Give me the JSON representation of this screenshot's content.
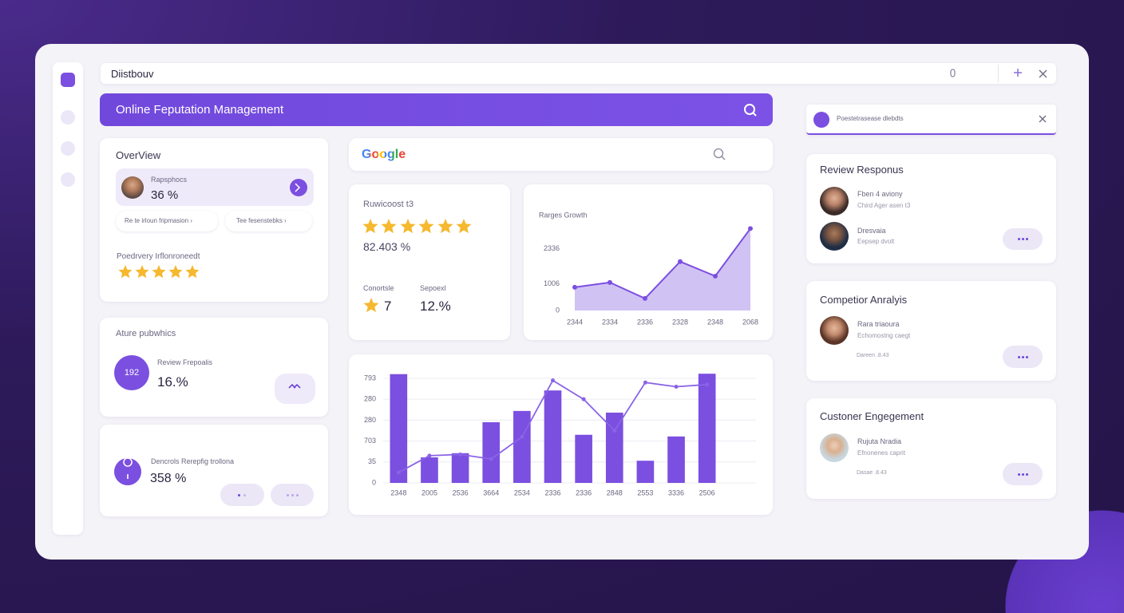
{
  "topbar": {
    "title": "Diistbouv"
  },
  "banner": {
    "title": "Online Feputation Management"
  },
  "overview": {
    "title": "OverView",
    "stat_label": "Rapsphocs",
    "stat_value": "36 %",
    "pills": [
      "Re te irloun fripmasion ›",
      "Tee fesenstebks ›"
    ],
    "rating_label": "Poedrvery Irflonroneedt"
  },
  "public_card": {
    "title": "Ature pubwhics",
    "badge": "192",
    "label": "Review Frepoalis",
    "value": "16.%"
  },
  "control_card": {
    "label": "Dencrols Rerepfig trollona",
    "value": "358 %"
  },
  "search": {
    "brand": "Google"
  },
  "rating_card": {
    "title": "Ruwicoost t3",
    "score": "82.403 %",
    "left_label": "Conortsle",
    "right_label": "Sepoexl",
    "left_value": "7",
    "right_value": "12.%"
  },
  "chart_data": [
    {
      "type": "area",
      "title": "Rarges Growth",
      "categories": [
        "2344",
        "2334",
        "2336",
        "2328",
        "2348",
        "2068"
      ],
      "series": [
        {
          "color": "#7b4fe0",
          "values": [
            880,
            1060,
            455,
            1850,
            1300,
            3100
          ]
        }
      ],
      "ylim": [
        0,
        3200
      ],
      "yticks": [
        0,
        1006,
        2336
      ],
      "grid": false
    },
    {
      "type": "bar",
      "categories": [
        "2348",
        "2005",
        "2536",
        "3664",
        "2534",
        "2336",
        "2336",
        "2848",
        "2553",
        "3336",
        "2506"
      ],
      "series": [
        {
          "type": "bar",
          "color": "#7b4fe0",
          "values": [
            260,
            61,
            71,
            145,
            172,
            221,
            115,
            168,
            53,
            111,
            261
          ]
        },
        {
          "type": "line",
          "color": "#8a63e6",
          "values": [
            25,
            65,
            68,
            57,
            110,
            245,
            200,
            125,
            240,
            230,
            235
          ]
        }
      ],
      "ylim": [
        0,
        270
      ],
      "yticks": [
        0,
        {
          "value": 50,
          "label": "35"
        },
        {
          "value": 100,
          "label": "703"
        },
        {
          "value": 150,
          "label": "280"
        },
        {
          "value": 200,
          "label": "280"
        },
        {
          "value": 250,
          "label": "793"
        }
      ],
      "grid": true
    }
  ],
  "notification": {
    "text": "Poestetrasease dlebdts"
  },
  "review_responses": {
    "title": "Review Responus",
    "items": [
      {
        "name": "Fben 4 aviony",
        "detail": "Chird Ager asen t3"
      },
      {
        "name": "Dresvaia",
        "detail": "Eepsep dvolt"
      }
    ]
  },
  "competitor": {
    "title": "Competior Anralyis",
    "name": "Rara triaoura",
    "detail": "Echomostng caegt",
    "date": "Dareen .8.43"
  },
  "engagement": {
    "title": "Custoner Engegement",
    "name": "Rujuta Nradia",
    "detail": "Efnonenes caprit",
    "date": "Dasae .8.43"
  }
}
